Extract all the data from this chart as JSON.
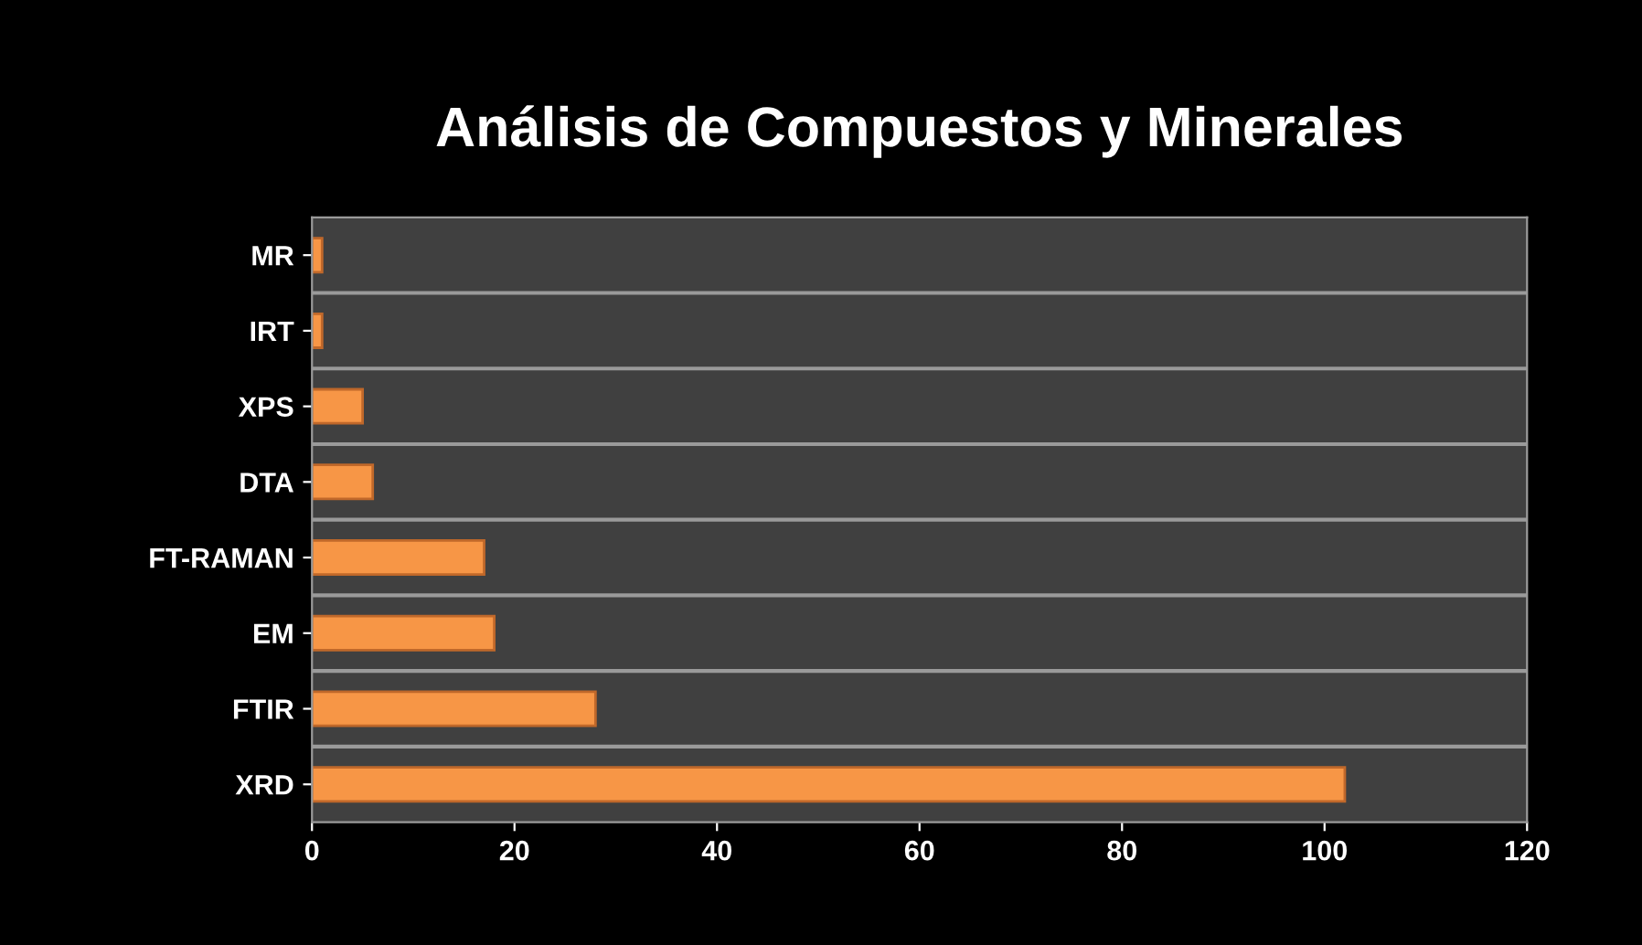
{
  "chart_data": {
    "type": "bar",
    "orientation": "horizontal",
    "title": "Análisis de Compuestos y Minerales",
    "categories": [
      "MR",
      "IRT",
      "XPS",
      "DTA",
      "FT-RAMAN",
      "EM",
      "FTIR",
      "XRD"
    ],
    "values": [
      1,
      1,
      5,
      6,
      17,
      18,
      28,
      102
    ],
    "color": "#f79646",
    "xlim": [
      0,
      120
    ],
    "xticks": [
      0,
      20,
      40,
      60,
      80,
      100,
      120
    ],
    "grid": "y"
  }
}
